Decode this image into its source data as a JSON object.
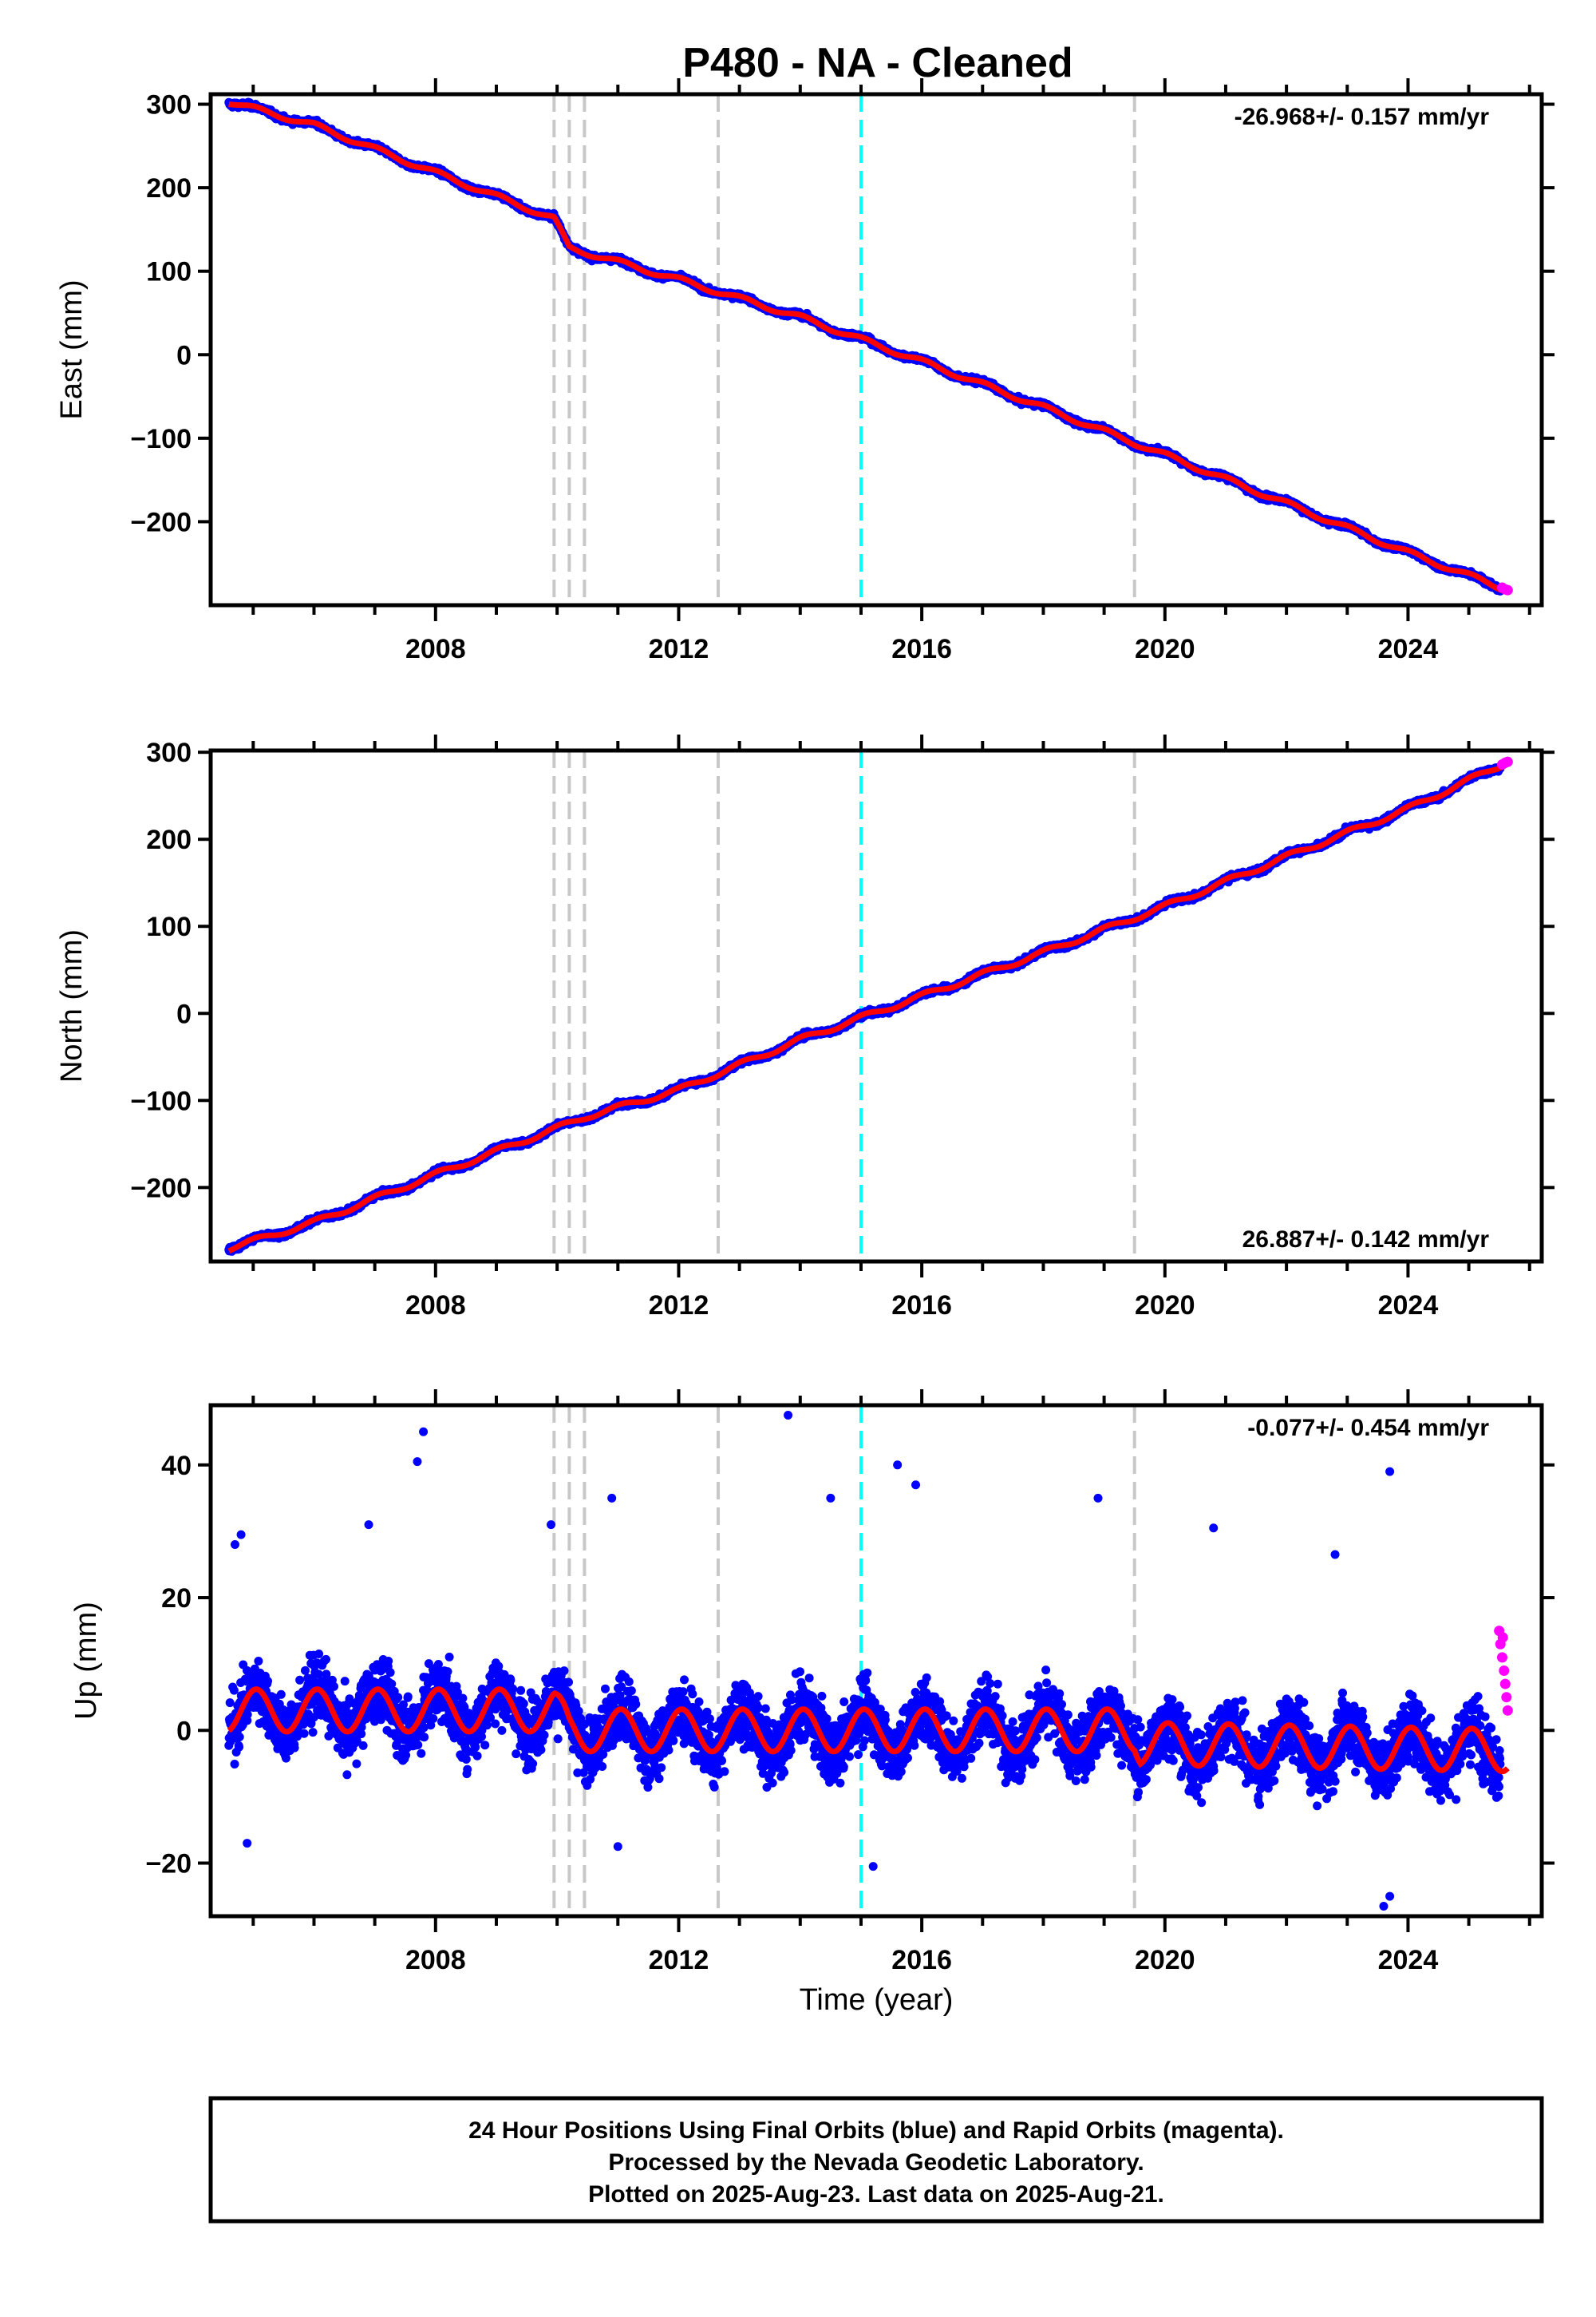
{
  "title": "P480  - NA - Cleaned",
  "colors": {
    "final_orbits": "#0000ff",
    "rapid_orbits": "#ff00ff",
    "model": "#ff0000",
    "equipment_change": "#c8c8c8",
    "earthquake": "#00ffff"
  },
  "x_axis": {
    "label": "Time (year)",
    "range": [
      2004.3,
      2026.2
    ],
    "tick_labels": [
      "2008",
      "2012",
      "2016",
      "2020",
      "2024"
    ],
    "tick_values": [
      2008,
      2012,
      2016,
      2020,
      2024
    ]
  },
  "event_lines": {
    "gray": [
      2009.95,
      2010.2,
      2010.45,
      2012.65,
      2019.5
    ],
    "cyan": [
      2015.0
    ]
  },
  "footer": {
    "line1": "24 Hour Positions Using Final Orbits (blue) and Rapid Orbits (magenta).",
    "line2": "Processed by the Nevada Geodetic Laboratory.",
    "line3": "Plotted on 2025-Aug-23. Last data on 2025-Aug-21."
  },
  "chart_data": [
    {
      "type": "scatter",
      "component": "East",
      "ylabel": "East (mm)",
      "ylim": [
        -300,
        312
      ],
      "y_ticks": [
        -200,
        -100,
        0,
        100,
        200,
        300
      ],
      "y_tick_labels": [
        "−200",
        "−100",
        "0",
        "100",
        "200",
        "300"
      ],
      "rate_label": "-26.968+/- 0.157 mm/yr",
      "rate_position": "top-right",
      "data_span": [
        2004.6,
        2025.64
      ],
      "trend_points": [
        [
          2004.6,
          303
        ],
        [
          2006.0,
          275
        ],
        [
          2008.0,
          218
        ],
        [
          2009.95,
          163
        ],
        [
          2010.2,
          128
        ],
        [
          2012.0,
          90
        ],
        [
          2014.0,
          45
        ],
        [
          2016.0,
          -8
        ],
        [
          2018.0,
          -63
        ],
        [
          2020.0,
          -120
        ],
        [
          2022.0,
          -178
        ],
        [
          2024.0,
          -237
        ],
        [
          2025.64,
          -282
        ]
      ],
      "seasonal_amplitude": 3,
      "scatter_noise": 4,
      "rapid_orbit_points": [
        [
          2025.55,
          -279
        ],
        [
          2025.6,
          -281
        ],
        [
          2025.64,
          -282
        ]
      ]
    },
    {
      "type": "scatter",
      "component": "North",
      "ylabel": "North (mm)",
      "ylim": [
        -285,
        302
      ],
      "y_ticks": [
        -200,
        -100,
        0,
        100,
        200,
        300
      ],
      "y_tick_labels": [
        "−200",
        "−100",
        "0",
        "100",
        "200",
        "300"
      ],
      "rate_label": "26.887+/- 0.142 mm/yr",
      "rate_position": "bottom-right",
      "data_span": [
        2004.6,
        2025.64
      ],
      "trend_points": [
        [
          2004.6,
          -270
        ],
        [
          2006.0,
          -240
        ],
        [
          2008.0,
          -185
        ],
        [
          2009.95,
          -133
        ],
        [
          2010.5,
          -118
        ],
        [
          2012.0,
          -88
        ],
        [
          2014.0,
          -30
        ],
        [
          2016.0,
          20
        ],
        [
          2018.0,
          70
        ],
        [
          2020.0,
          123
        ],
        [
          2022.0,
          180
        ],
        [
          2024.0,
          235
        ],
        [
          2025.64,
          289
        ]
      ],
      "seasonal_amplitude": 3,
      "scatter_noise": 4,
      "rapid_orbit_points": [
        [
          2025.55,
          286
        ],
        [
          2025.6,
          288
        ],
        [
          2025.64,
          289
        ]
      ]
    },
    {
      "type": "scatter",
      "component": "Up",
      "ylabel": "Up (mm)",
      "ylim": [
        -28,
        49
      ],
      "y_ticks": [
        -20,
        0,
        20,
        40
      ],
      "y_tick_labels": [
        "−20",
        "0",
        "20",
        "40"
      ],
      "rate_label": "-0.077+/- 0.454 mm/yr",
      "rate_position": "top-right",
      "data_span": [
        2004.6,
        2025.64
      ],
      "trend_points": [
        [
          2004.6,
          3
        ],
        [
          2009.95,
          3
        ],
        [
          2010.2,
          0
        ],
        [
          2019.5,
          0
        ],
        [
          2019.6,
          -2
        ],
        [
          2025.64,
          -3
        ]
      ],
      "seasonal_amplitude": 3.2,
      "scatter_noise": 6,
      "outliers": [
        [
          2007.8,
          45
        ],
        [
          2007.7,
          40.5
        ],
        [
          2013.8,
          47.5
        ],
        [
          2023.7,
          39
        ],
        [
          2015.6,
          40
        ],
        [
          2015.9,
          37
        ],
        [
          2010.9,
          35
        ],
        [
          2018.9,
          35
        ],
        [
          2004.7,
          28
        ],
        [
          2004.8,
          29.5
        ],
        [
          2006.9,
          31
        ],
        [
          2009.9,
          31
        ],
        [
          2020.8,
          30.5
        ],
        [
          2022.8,
          26.5
        ],
        [
          2014.5,
          35
        ],
        [
          2004.9,
          -17
        ],
        [
          2015.2,
          -20.5
        ],
        [
          2023.6,
          -26.5
        ],
        [
          2023.7,
          -25
        ],
        [
          2011.0,
          -17.5
        ]
      ],
      "rapid_orbit_points": [
        [
          2025.5,
          15
        ],
        [
          2025.52,
          13
        ],
        [
          2025.55,
          11
        ],
        [
          2025.58,
          9
        ],
        [
          2025.6,
          7
        ],
        [
          2025.62,
          5
        ],
        [
          2025.64,
          3
        ],
        [
          2025.56,
          14
        ]
      ]
    }
  ]
}
